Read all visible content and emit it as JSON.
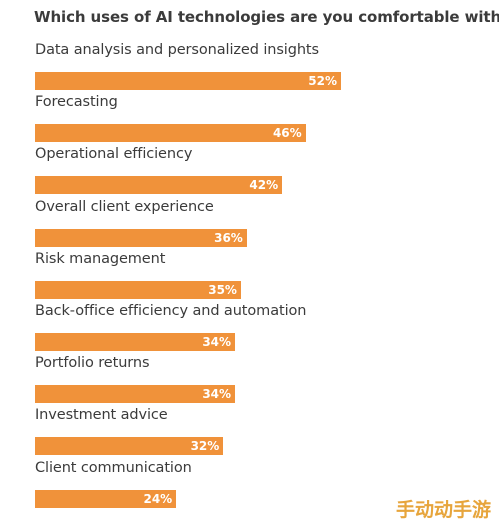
{
  "chart_data": {
    "type": "bar",
    "orientation": "horizontal",
    "title": "Which uses of AI technologies are you comfortable with?",
    "categories": [
      "Data analysis and personalized insights",
      "Forecasting",
      "Operational efficiency",
      "Overall client experience",
      "Risk management",
      "Back-office efficiency and automation",
      "Portfolio returns",
      "Investment advice",
      "Client communication"
    ],
    "values": [
      52,
      46,
      42,
      36,
      35,
      34,
      34,
      32,
      24
    ],
    "value_labels": [
      "52%",
      "46%",
      "42%",
      "36%",
      "35%",
      "34%",
      "34%",
      "32%",
      "24%"
    ],
    "bar_color": "#f0923a",
    "xlabel": "",
    "ylabel": "",
    "legend": "none",
    "grid": false
  },
  "watermark": "手动动手游"
}
